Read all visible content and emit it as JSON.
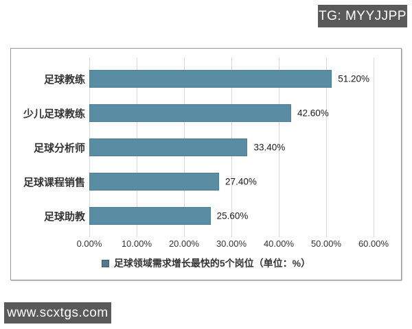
{
  "badges": {
    "tg": "TG: MYYJJPP",
    "site": "www.scxtgs.com",
    "bg_color": "#595959"
  },
  "chart_data": {
    "type": "bar",
    "orientation": "horizontal",
    "categories": [
      "足球教练",
      "少儿足球教练",
      "足球分析师",
      "足球课程销售",
      "足球助教"
    ],
    "values": [
      51.2,
      42.6,
      33.4,
      27.4,
      25.6
    ],
    "value_labels": [
      "51.20%",
      "42.60%",
      "33.40%",
      "27.40%",
      "25.60%"
    ],
    "x_ticks": [
      "0.00%",
      "10.00%",
      "20.00%",
      "30.00%",
      "40.00%",
      "50.00%",
      "60.00%"
    ],
    "xlim": [
      0,
      60
    ],
    "grid": true,
    "legend": "足球领域需求增长最快的5个岗位（单位：%）",
    "legend_position": "bottom",
    "bar_color": "#5a8da4",
    "legend_swatch_color": "#54798e",
    "gridline_color": "#d9d9d9"
  }
}
